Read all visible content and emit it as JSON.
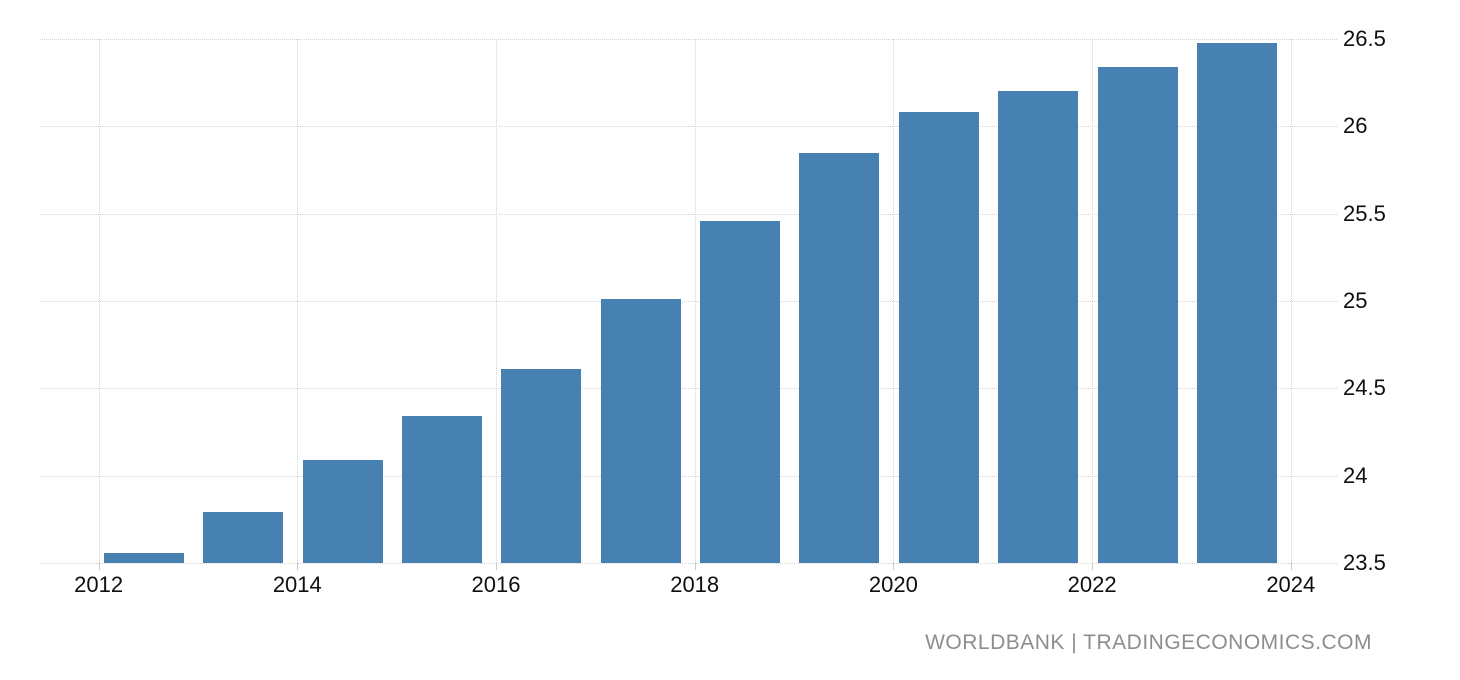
{
  "chart_data": {
    "type": "bar",
    "title": "",
    "xlabel": "",
    "ylabel": "",
    "categories": [
      2012,
      2013,
      2014,
      2015,
      2016,
      2017,
      2018,
      2019,
      2020,
      2021,
      2022,
      2023
    ],
    "values": [
      23.56,
      23.79,
      24.09,
      24.34,
      24.61,
      25.01,
      25.46,
      25.85,
      26.08,
      26.2,
      26.34,
      26.48
    ],
    "ylim": [
      23.5,
      26.5
    ],
    "y_ticks": [
      23.5,
      24,
      24.5,
      25,
      25.5,
      26,
      26.5
    ],
    "y_tick_labels": [
      "23.5",
      "24",
      "24.5",
      "25",
      "25.5",
      "26",
      "26.5"
    ],
    "x_ticks": [
      2012,
      2014,
      2016,
      2018,
      2020,
      2022,
      2024
    ],
    "x_tick_labels": [
      "2012",
      "2014",
      "2016",
      "2018",
      "2020",
      "2022",
      "2024"
    ],
    "grid": true,
    "legend": false,
    "y_axis_side": "right",
    "bar_color": "#4681b2",
    "grid_color": "#d4d4d4",
    "tick_color": "#c9c9c9",
    "label_color": "#0f0f0f"
  },
  "watermark": {
    "text": "WORLDBANK | TRADINGECONOMICS.COM",
    "color": "#8d8d8d"
  }
}
